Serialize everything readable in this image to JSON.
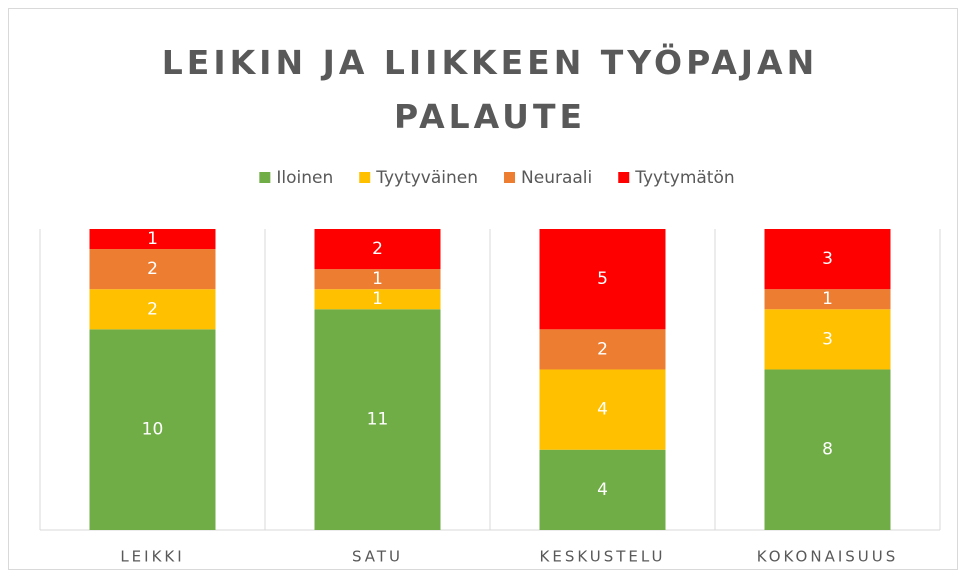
{
  "chart_data": {
    "type": "stacked_bar",
    "title": "LEIKIN JA LIIKKEEN TYÖPAJAN PALAUTE",
    "categories": [
      "LEIKKI",
      "SATU",
      "KESKUSTELU",
      "KOKONAISUUS"
    ],
    "series": [
      {
        "name": "Iloinen",
        "color": "#70ad47",
        "values": [
          10,
          11,
          4,
          8
        ]
      },
      {
        "name": "Tyytyväinen",
        "color": "#ffc000",
        "values": [
          2,
          1,
          4,
          3
        ]
      },
      {
        "name": "Neuraali",
        "color": "#ed7d31",
        "values": [
          2,
          1,
          2,
          1
        ]
      },
      {
        "name": "Tyytymätön",
        "color": "#ff0000",
        "values": [
          1,
          2,
          5,
          3
        ]
      }
    ],
    "ylim": [
      0,
      15
    ],
    "legend": "top"
  }
}
